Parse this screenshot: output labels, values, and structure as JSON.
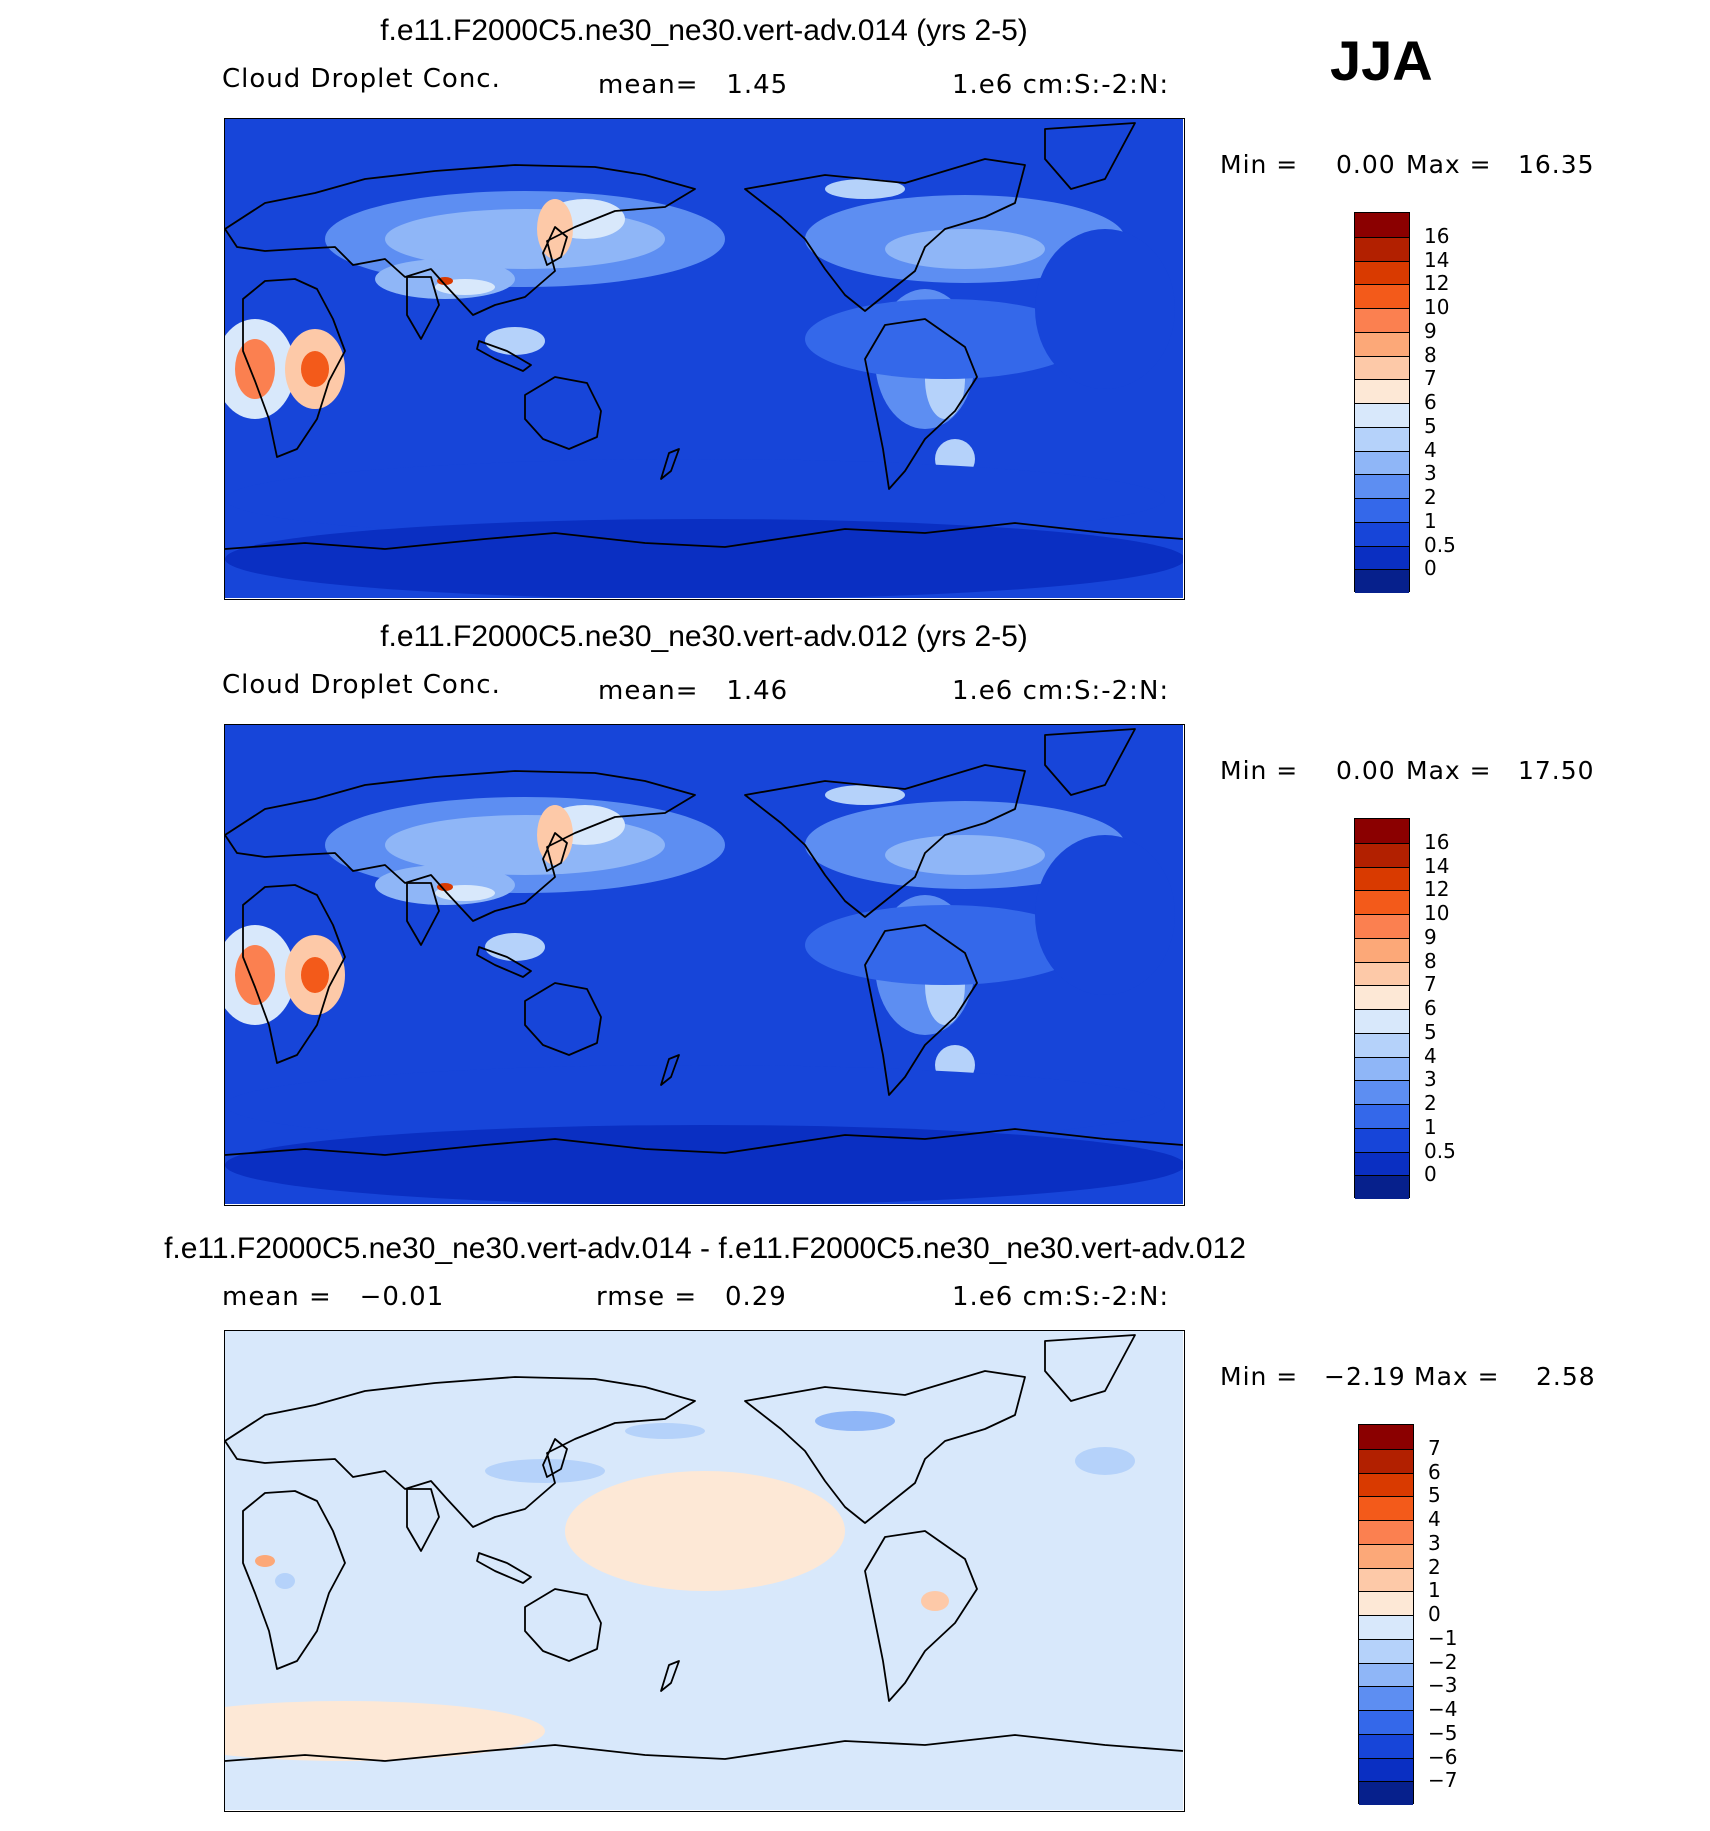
{
  "season": "JJA",
  "panels": [
    {
      "title": "f.e11.F2000C5.ne30_ne30.vert-adv.014 (yrs 2-5)",
      "left_text": "Cloud Droplet Conc.",
      "center_text": "mean=   1.45",
      "units": "1.e6 cm:S:-2:N:",
      "min_text": "Min =",
      "min_value": "0.00",
      "max_text": "Max =",
      "max_value": "16.35",
      "field_type": "absolute",
      "colorbar": {
        "labels": [
          "16",
          "14",
          "12",
          "10",
          "9",
          "8",
          "7",
          "6",
          "5",
          "4",
          "3",
          "2",
          "1",
          "0.5",
          "0"
        ],
        "colors": [
          "#8b0000",
          "#b22000",
          "#d93a00",
          "#f35a1a",
          "#fb8050",
          "#fca878",
          "#fdc9a8",
          "#fde8d6",
          "#d8e8fb",
          "#b5d2fa",
          "#8fb6f7",
          "#5d8ef2",
          "#3468ea",
          "#1745d9",
          "#0a2fc2",
          "#06208c"
        ]
      }
    },
    {
      "title": "f.e11.F2000C5.ne30_ne30.vert-adv.012 (yrs 2-5)",
      "left_text": "Cloud Droplet Conc.",
      "center_text": "mean=   1.46",
      "units": "1.e6 cm:S:-2:N:",
      "min_text": "Min =",
      "min_value": "0.00",
      "max_text": "Max =",
      "max_value": "17.50",
      "field_type": "absolute",
      "colorbar": {
        "labels": [
          "16",
          "14",
          "12",
          "10",
          "9",
          "8",
          "7",
          "6",
          "5",
          "4",
          "3",
          "2",
          "1",
          "0.5",
          "0"
        ],
        "colors": [
          "#8b0000",
          "#b22000",
          "#d93a00",
          "#f35a1a",
          "#fb8050",
          "#fca878",
          "#fdc9a8",
          "#fde8d6",
          "#d8e8fb",
          "#b5d2fa",
          "#8fb6f7",
          "#5d8ef2",
          "#3468ea",
          "#1745d9",
          "#0a2fc2",
          "#06208c"
        ]
      }
    },
    {
      "title": "f.e11.F2000C5.ne30_ne30.vert-adv.014 - f.e11.F2000C5.ne30_ne30.vert-adv.012",
      "left_text": "mean =   −0.01",
      "center_text": "rmse =   0.29",
      "units": "1.e6 cm:S:-2:N:",
      "min_text": "Min =",
      "min_value": "−2.19",
      "max_text": "Max =",
      "max_value": "2.58",
      "field_type": "difference",
      "colorbar": {
        "labels": [
          "7",
          "6",
          "5",
          "4",
          "3",
          "2",
          "1",
          "0",
          "−1",
          "−2",
          "−3",
          "−4",
          "−5",
          "−6",
          "−7"
        ],
        "colors": [
          "#8b0000",
          "#b22000",
          "#d93a00",
          "#f35a1a",
          "#fb8050",
          "#fca878",
          "#fdc9a8",
          "#fde8d6",
          "#d8e8fb",
          "#b5d2fa",
          "#8fb6f7",
          "#5d8ef2",
          "#3468ea",
          "#1745d9",
          "#0a2fc2",
          "#06208c"
        ]
      }
    }
  ]
}
